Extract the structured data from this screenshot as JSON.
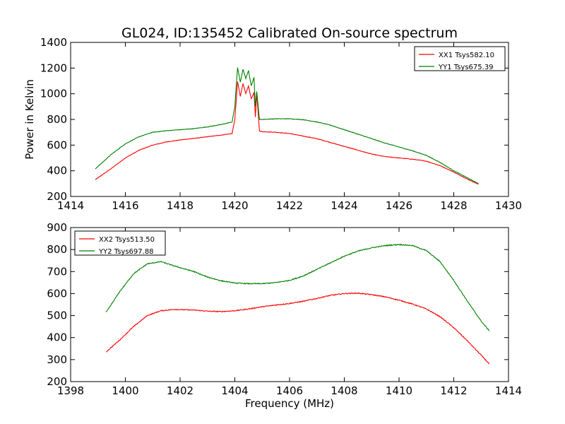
{
  "figure": {
    "title": "GL024, ID:135452 Calibrated On-source spectrum",
    "ylabel_top": "Power in Kelvin",
    "xlabel_bottom": "Frequency (MHz)"
  },
  "chart_data": [
    {
      "type": "line",
      "title": "GL024, ID:135452 Calibrated On-source spectrum",
      "xlabel": "",
      "ylabel": "Power in Kelvin",
      "xlim": [
        1414,
        1430
      ],
      "ylim": [
        200,
        1400
      ],
      "xticks": [
        1414,
        1416,
        1418,
        1420,
        1422,
        1424,
        1426,
        1428,
        1430
      ],
      "yticks": [
        200,
        400,
        600,
        800,
        1000,
        1200,
        1400
      ],
      "legend_position": "top-right",
      "series": [
        {
          "name": "XX1 Tsys582.10",
          "color": "#ff0000",
          "x": [
            1414.9,
            1415.5,
            1416,
            1416.5,
            1417,
            1417.5,
            1418,
            1418.5,
            1419,
            1419.5,
            1419.9,
            1420.0,
            1420.1,
            1420.2,
            1420.3,
            1420.4,
            1420.5,
            1420.6,
            1420.7,
            1420.75,
            1420.8,
            1420.9,
            1421,
            1421.5,
            1422,
            1422.5,
            1423,
            1423.5,
            1424,
            1424.5,
            1425,
            1425.5,
            1426,
            1426.5,
            1427,
            1427.5,
            1428,
            1428.5,
            1428.9
          ],
          "y": [
            330,
            420,
            500,
            560,
            600,
            625,
            640,
            652,
            665,
            678,
            690,
            800,
            1095,
            980,
            1080,
            1000,
            1060,
            960,
            1010,
            820,
            1000,
            710,
            705,
            700,
            690,
            670,
            650,
            620,
            590,
            560,
            530,
            510,
            500,
            490,
            475,
            440,
            390,
            335,
            295
          ]
        },
        {
          "name": "YY1 Tsys675.39",
          "color": "#008000",
          "x": [
            1414.9,
            1415.5,
            1416,
            1416.5,
            1417,
            1417.5,
            1418,
            1418.5,
            1419,
            1419.5,
            1419.9,
            1420.0,
            1420.1,
            1420.2,
            1420.3,
            1420.4,
            1420.5,
            1420.6,
            1420.7,
            1420.75,
            1420.8,
            1420.9,
            1421,
            1421.5,
            1422,
            1422.5,
            1423,
            1423.5,
            1424,
            1424.5,
            1425,
            1425.5,
            1426,
            1426.5,
            1427,
            1427.5,
            1428,
            1428.5,
            1428.9
          ],
          "y": [
            415,
            530,
            610,
            665,
            700,
            712,
            720,
            728,
            742,
            760,
            780,
            900,
            1205,
            1090,
            1190,
            1120,
            1180,
            1060,
            1130,
            900,
            1020,
            800,
            800,
            805,
            805,
            798,
            780,
            755,
            720,
            685,
            650,
            615,
            585,
            555,
            520,
            465,
            400,
            345,
            300
          ]
        }
      ]
    },
    {
      "type": "line",
      "title": "",
      "xlabel": "Frequency (MHz)",
      "ylabel": "",
      "xlim": [
        1398,
        1414
      ],
      "ylim": [
        200,
        900
      ],
      "xticks": [
        1398,
        1400,
        1402,
        1404,
        1406,
        1408,
        1410,
        1412,
        1414
      ],
      "yticks": [
        200,
        300,
        400,
        500,
        600,
        700,
        800,
        900
      ],
      "legend_position": "top-left",
      "series": [
        {
          "name": "XX2 Tsys513.50",
          "color": "#ff0000",
          "x": [
            1399.3,
            1399.8,
            1400.3,
            1400.8,
            1401.3,
            1401.8,
            1402.5,
            1403,
            1403.5,
            1404,
            1404.5,
            1405,
            1405.5,
            1406,
            1406.5,
            1407,
            1407.5,
            1408,
            1408.5,
            1409,
            1409.5,
            1410,
            1410.5,
            1411,
            1411.5,
            1412,
            1412.5,
            1413,
            1413.3
          ],
          "y": [
            335,
            390,
            450,
            500,
            522,
            528,
            525,
            520,
            518,
            522,
            530,
            540,
            548,
            555,
            565,
            578,
            592,
            600,
            602,
            595,
            585,
            570,
            552,
            530,
            495,
            445,
            385,
            320,
            280
          ]
        },
        {
          "name": "YY2 Tsys697.88",
          "color": "#008000",
          "x": [
            1399.3,
            1399.8,
            1400.3,
            1400.8,
            1401.3,
            1401.8,
            1402.5,
            1403,
            1403.5,
            1404,
            1404.5,
            1405,
            1405.5,
            1406,
            1406.5,
            1407,
            1407.5,
            1408,
            1408.5,
            1409,
            1409.5,
            1410,
            1410.5,
            1411,
            1411.5,
            1412,
            1412.5,
            1413,
            1413.3
          ],
          "y": [
            515,
            610,
            690,
            735,
            745,
            725,
            700,
            675,
            658,
            648,
            645,
            645,
            650,
            660,
            680,
            710,
            740,
            770,
            793,
            808,
            818,
            823,
            818,
            795,
            745,
            660,
            565,
            475,
            430
          ]
        }
      ]
    }
  ]
}
